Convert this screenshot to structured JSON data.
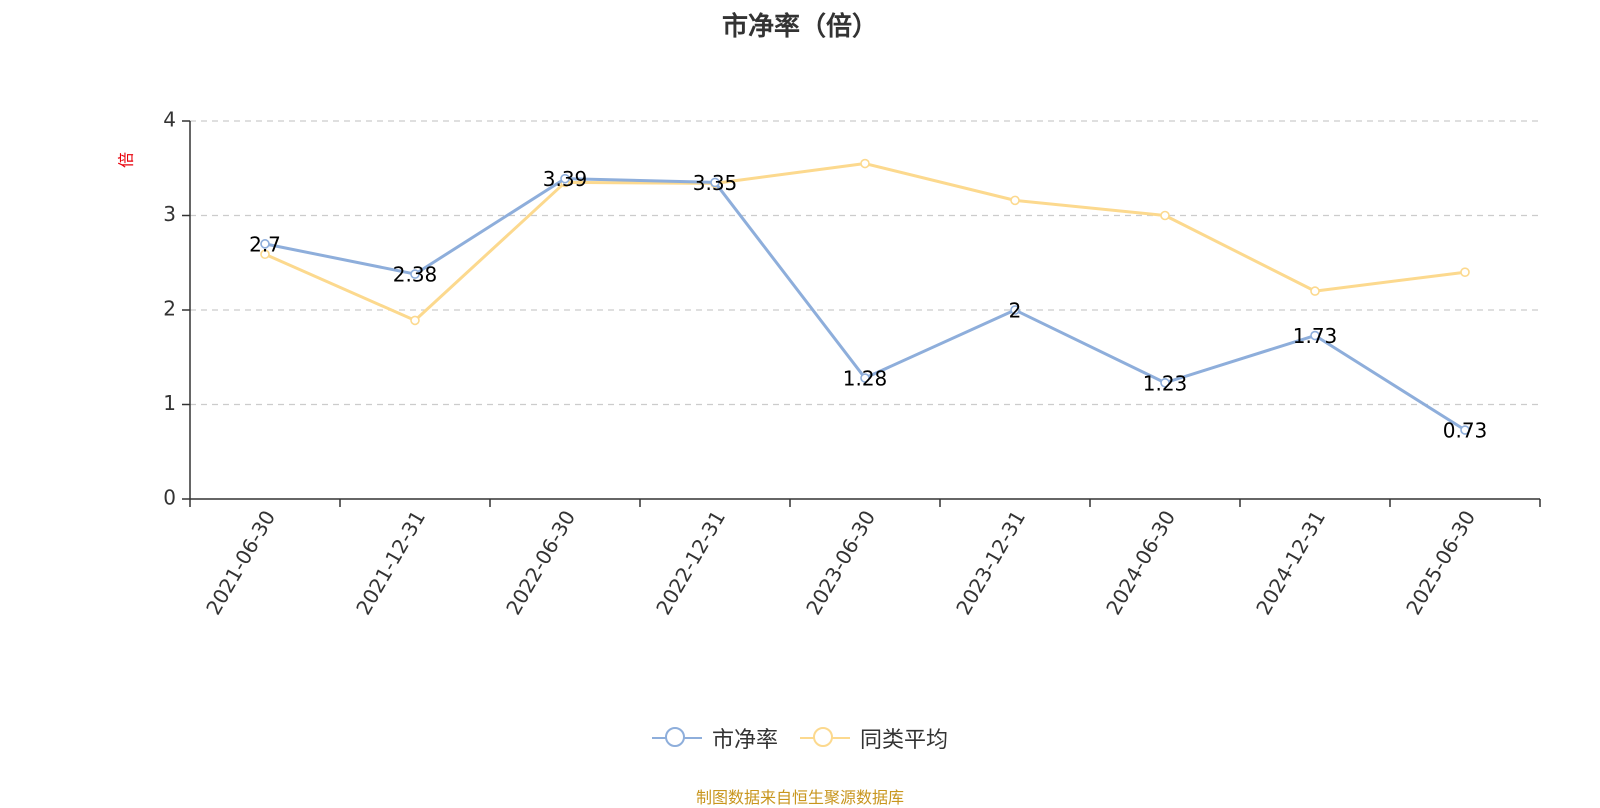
{
  "chart_data": {
    "type": "line",
    "title": "市净率（倍）",
    "ylabel": "倍",
    "ylim": [
      0,
      4
    ],
    "yticks": [
      0,
      1,
      2,
      3,
      4
    ],
    "grid": true,
    "legend_position": "bottom",
    "categories": [
      "2021-06-30",
      "2021-12-31",
      "2022-06-30",
      "2022-12-31",
      "2023-06-30",
      "2023-12-31",
      "2024-06-30",
      "2024-12-31",
      "2025-06-30"
    ],
    "series": [
      {
        "name": "市净率",
        "color": "#8eaedb",
        "values": [
          2.7,
          2.38,
          3.39,
          3.35,
          1.28,
          2,
          1.23,
          1.73,
          0.73
        ],
        "labels": [
          "2.7",
          "2.38",
          "3.39",
          "3.35",
          "1.28",
          "2",
          "1.23",
          "1.73",
          "0.73"
        ]
      },
      {
        "name": "同类平均",
        "color": "#fcd98e",
        "values": [
          2.59,
          1.89,
          3.35,
          3.34,
          3.55,
          3.16,
          3.0,
          2.2,
          2.4
        ]
      }
    ]
  },
  "source": "制图数据来自恒生聚源数据库"
}
